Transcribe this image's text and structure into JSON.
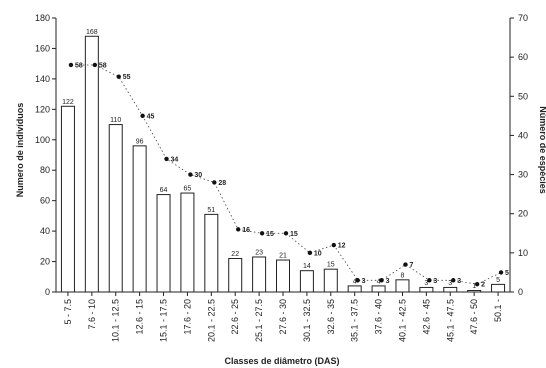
{
  "chart_data": {
    "type": "bar",
    "categories": [
      "5 - 7.5",
      "7.6 - 10",
      "10.1 - 12.5",
      "12.6 - 15",
      "15.1 - 17.5",
      "17.6 - 20",
      "20.1 - 22.5",
      "22.6 - 25",
      "25.1 - 27.5",
      "27.6 - 30",
      "30.1 - 32.5",
      "32.6 - 35",
      "35.1 - 37.5",
      "37.6 - 40",
      "40.1 - 42.5",
      "42.6 - 45",
      "45.1 - 47.5",
      "47.6 - 50",
      "50.1 -"
    ],
    "series": [
      {
        "name": "",
        "axis": "left",
        "kind": "bar",
        "values": [
          122,
          168,
          110,
          96,
          64,
          65,
          51,
          22,
          23,
          21,
          14,
          15,
          4,
          4,
          8,
          3,
          3,
          1,
          5
        ],
        "labels": [
          "122",
          "168",
          "110",
          "96",
          "64",
          "65",
          "51",
          "22",
          "23",
          "21",
          "14",
          "15",
          "4",
          "4",
          "8",
          "3",
          "3",
          "1",
          "5"
        ]
      },
      {
        "name": "",
        "axis": "right",
        "kind": "line-points",
        "values": [
          58,
          58,
          55,
          45,
          34,
          30,
          28,
          16,
          15,
          15,
          10,
          12,
          3,
          3,
          7,
          3,
          3,
          2,
          5
        ],
        "labels": [
          "58",
          "58",
          "55",
          "45",
          "34",
          "30",
          "28",
          "16",
          "15",
          "15",
          "10",
          "12",
          "3",
          "3",
          "7",
          "3",
          "3",
          "2",
          "5"
        ]
      }
    ],
    "xlabel": "Classes de diâmetro (DAS)",
    "ylabel": "Numero de indivíduos",
    "y2label": "Número de espécies",
    "ylim": [
      0,
      180
    ],
    "y2lim": [
      0,
      70
    ],
    "yticks": [
      "0",
      "20",
      "40",
      "60",
      "80",
      "100",
      "120",
      "140",
      "160",
      "180"
    ],
    "y2ticks": [
      "0",
      "10",
      "20",
      "30",
      "40",
      "50",
      "60",
      "70"
    ],
    "grid": false,
    "legend": "none"
  }
}
